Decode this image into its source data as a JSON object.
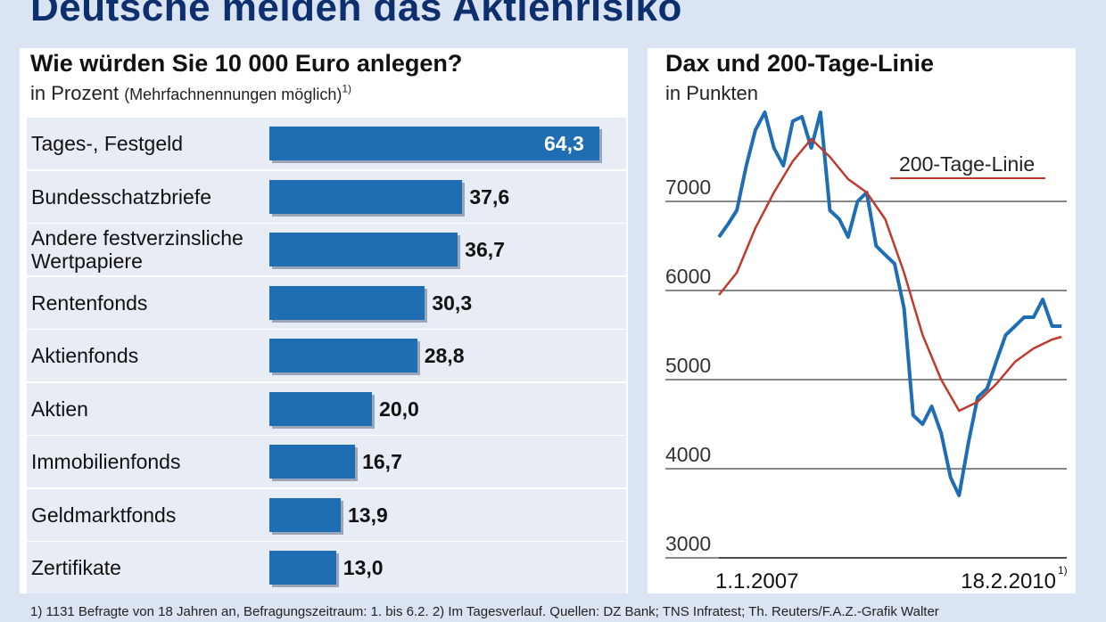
{
  "main_title": "Deutsche meiden das Aktienrisiko",
  "chart_data": [
    {
      "type": "bar",
      "orientation": "horizontal",
      "title": "Wie würden Sie 10 000 Euro anlegen?",
      "unit": "in Prozent",
      "unit_note": "(Mehrfachnennungen möglich)",
      "unit_footnote_marker": "1)",
      "categories": [
        "Tages-, Festgeld",
        "Bundesschatzbriefe",
        "Andere festverzinsliche Wertpapiere",
        "Rentenfonds",
        "Aktienfonds",
        "Aktien",
        "Immobilienfonds",
        "Geldmarktfonds",
        "Zertifikate"
      ],
      "category_lines": [
        [
          "Tages-, Festgeld"
        ],
        [
          "Bundesschatzbriefe"
        ],
        [
          "Andere festverzinsliche",
          "Wertpapiere"
        ],
        [
          "Rentenfonds"
        ],
        [
          "Aktienfonds"
        ],
        [
          "Aktien"
        ],
        [
          "Immobilienfonds"
        ],
        [
          "Geldmarktfonds"
        ],
        [
          "Zertifikate"
        ]
      ],
      "values": [
        64.3,
        37.6,
        36.7,
        30.3,
        28.8,
        20.0,
        16.7,
        13.9,
        13.0
      ],
      "value_labels": [
        "64,3",
        "37,6",
        "36,7",
        "30,3",
        "28,8",
        "20,0",
        "16,7",
        "13,9",
        "13,0"
      ],
      "color": "#1f6eb4"
    },
    {
      "type": "line",
      "title": "Dax und 200-Tage-Linie",
      "unit": "in Punkten",
      "x_labels": [
        "1.1.2007",
        "18.2.2010"
      ],
      "x_end_footnote_marker": "1)",
      "x_range": [
        "2007-01-01",
        "2010-02-18"
      ],
      "ylim": [
        3000,
        8000
      ],
      "y_ticks": [
        3000,
        4000,
        5000,
        6000,
        7000
      ],
      "grid": true,
      "series": [
        {
          "name": "",
          "color": "#1f6eb4",
          "x": [
            "2007-01",
            "2007-02",
            "2007-03",
            "2007-04",
            "2007-05",
            "2007-06",
            "2007-07",
            "2007-08",
            "2007-09",
            "2007-10",
            "2007-11",
            "2007-12",
            "2008-01",
            "2008-02",
            "2008-03",
            "2008-04",
            "2008-05",
            "2008-06",
            "2008-07",
            "2008-08",
            "2008-09",
            "2008-10",
            "2008-11",
            "2008-12",
            "2009-01",
            "2009-02",
            "2009-03",
            "2009-04",
            "2009-05",
            "2009-06",
            "2009-07",
            "2009-08",
            "2009-09",
            "2009-10",
            "2009-11",
            "2009-12",
            "2010-01",
            "2010-02"
          ],
          "y": [
            6600,
            6750,
            6900,
            7400,
            7800,
            8000,
            7600,
            7400,
            7900,
            7950,
            7600,
            8000,
            6900,
            6800,
            6600,
            7000,
            7100,
            6500,
            6400,
            6300,
            5800,
            4600,
            4500,
            4700,
            4400,
            3900,
            3700,
            4300,
            4800,
            4900,
            5200,
            5500,
            5600,
            5700,
            5700,
            5900,
            5600,
            5600
          ]
        },
        {
          "name": "200-Tage-Linie",
          "color": "#c0392b",
          "x": [
            "2007-01",
            "2007-03",
            "2007-05",
            "2007-07",
            "2007-09",
            "2007-11",
            "2008-01",
            "2008-03",
            "2008-05",
            "2008-07",
            "2008-09",
            "2008-11",
            "2009-01",
            "2009-03",
            "2009-05",
            "2009-07",
            "2009-09",
            "2009-11",
            "2010-01",
            "2010-02"
          ],
          "y": [
            5950,
            6200,
            6700,
            7100,
            7450,
            7700,
            7500,
            7250,
            7100,
            6800,
            6200,
            5500,
            5000,
            4650,
            4750,
            4950,
            5200,
            5350,
            5450,
            5480
          ]
        }
      ]
    }
  ],
  "footnote": "1) 1131 Befragte von 18 Jahren an, Befragungszeitraum: 1. bis 6.2.   2) Im Tagesverlauf.   Quellen: DZ Bank; TNS Infratest;   Th. Reuters/F.A.Z.-Grafik Walter"
}
